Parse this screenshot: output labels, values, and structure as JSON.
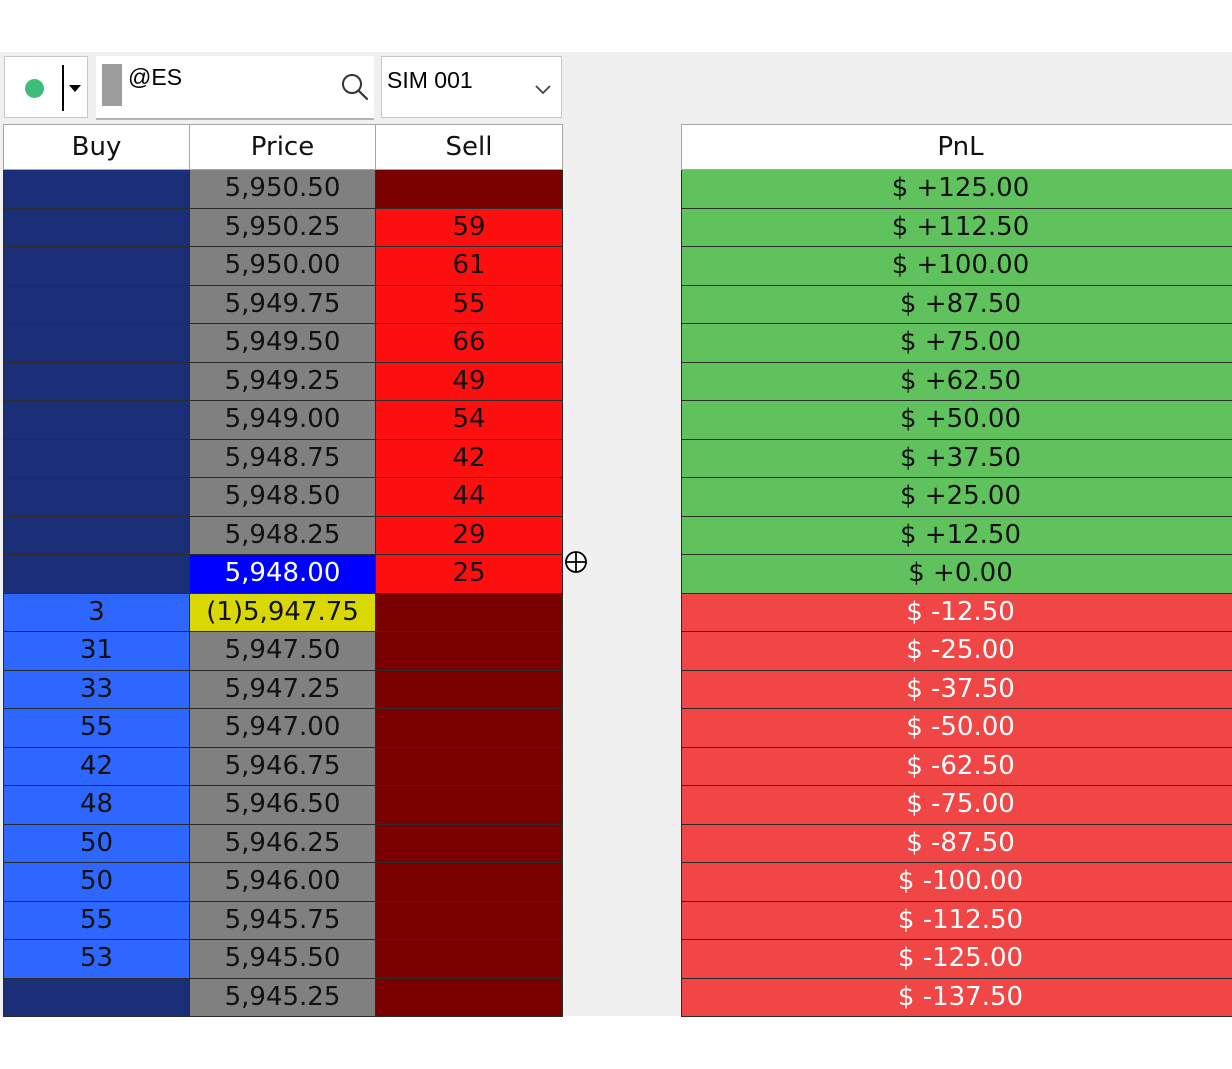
{
  "toolbar": {
    "connection_status_icon": "status-dot-icon",
    "connection_status_color": "#3dbd7a",
    "symbol": "@ES",
    "search_icon": "search-icon",
    "account": "SIM 001",
    "account_dropdown_icon": "chevron-down-icon"
  },
  "ladder": {
    "headers": {
      "buy": "Buy",
      "price": "Price",
      "sell": "Sell"
    },
    "rows": [
      {
        "buy": "",
        "price": "5,950.50",
        "sell": "",
        "price_state": "normal"
      },
      {
        "buy": "",
        "price": "5,950.25",
        "sell": "59",
        "price_state": "normal"
      },
      {
        "buy": "",
        "price": "5,950.00",
        "sell": "61",
        "price_state": "normal"
      },
      {
        "buy": "",
        "price": "5,949.75",
        "sell": "55",
        "price_state": "normal"
      },
      {
        "buy": "",
        "price": "5,949.50",
        "sell": "66",
        "price_state": "normal"
      },
      {
        "buy": "",
        "price": "5,949.25",
        "sell": "49",
        "price_state": "normal"
      },
      {
        "buy": "",
        "price": "5,949.00",
        "sell": "54",
        "price_state": "normal"
      },
      {
        "buy": "",
        "price": "5,948.75",
        "sell": "42",
        "price_state": "normal"
      },
      {
        "buy": "",
        "price": "5,948.50",
        "sell": "44",
        "price_state": "normal"
      },
      {
        "buy": "",
        "price": "5,948.25",
        "sell": "29",
        "price_state": "normal"
      },
      {
        "buy": "",
        "price": "5,948.00",
        "sell": "25",
        "price_state": "last"
      },
      {
        "buy": "3",
        "price": "(1)5,947.75",
        "sell": "",
        "price_state": "position"
      },
      {
        "buy": "31",
        "price": "5,947.50",
        "sell": "",
        "price_state": "normal"
      },
      {
        "buy": "33",
        "price": "5,947.25",
        "sell": "",
        "price_state": "normal"
      },
      {
        "buy": "55",
        "price": "5,947.00",
        "sell": "",
        "price_state": "normal"
      },
      {
        "buy": "42",
        "price": "5,946.75",
        "sell": "",
        "price_state": "normal"
      },
      {
        "buy": "48",
        "price": "5,946.50",
        "sell": "",
        "price_state": "normal"
      },
      {
        "buy": "50",
        "price": "5,946.25",
        "sell": "",
        "price_state": "normal"
      },
      {
        "buy": "50",
        "price": "5,946.00",
        "sell": "",
        "price_state": "normal"
      },
      {
        "buy": "55",
        "price": "5,945.75",
        "sell": "",
        "price_state": "normal"
      },
      {
        "buy": "53",
        "price": "5,945.50",
        "sell": "",
        "price_state": "normal"
      },
      {
        "buy": "",
        "price": "5,945.25",
        "sell": "",
        "price_state": "normal"
      }
    ]
  },
  "pnl": {
    "header": "PnL",
    "rows": [
      "$ +125.00",
      "$ +112.50",
      "$ +100.00",
      "$ +87.50",
      "$ +75.00",
      "$ +62.50",
      "$ +50.00",
      "$ +37.50",
      "$ +25.00",
      "$ +12.50",
      "$ +0.00",
      "$ -12.50",
      "$ -25.00",
      "$ -37.50",
      "$ -50.00",
      "$ -62.50",
      "$ -75.00",
      "$ -87.50",
      "$ -100.00",
      "$ -112.50",
      "$ -125.00",
      "$ -137.50"
    ]
  },
  "cursor": {
    "icon": "crosshair-icon"
  },
  "colors": {
    "buy_empty": "#1a2f78",
    "buy_size": "#2d67fe",
    "price": "#808080",
    "price_last": "#0000fe",
    "price_position": "#d9d804",
    "sell_empty": "#7a0000",
    "sell_size": "#fe0f0f",
    "pnl_positive": "#5fc25c",
    "pnl_negative": "#f04646"
  }
}
